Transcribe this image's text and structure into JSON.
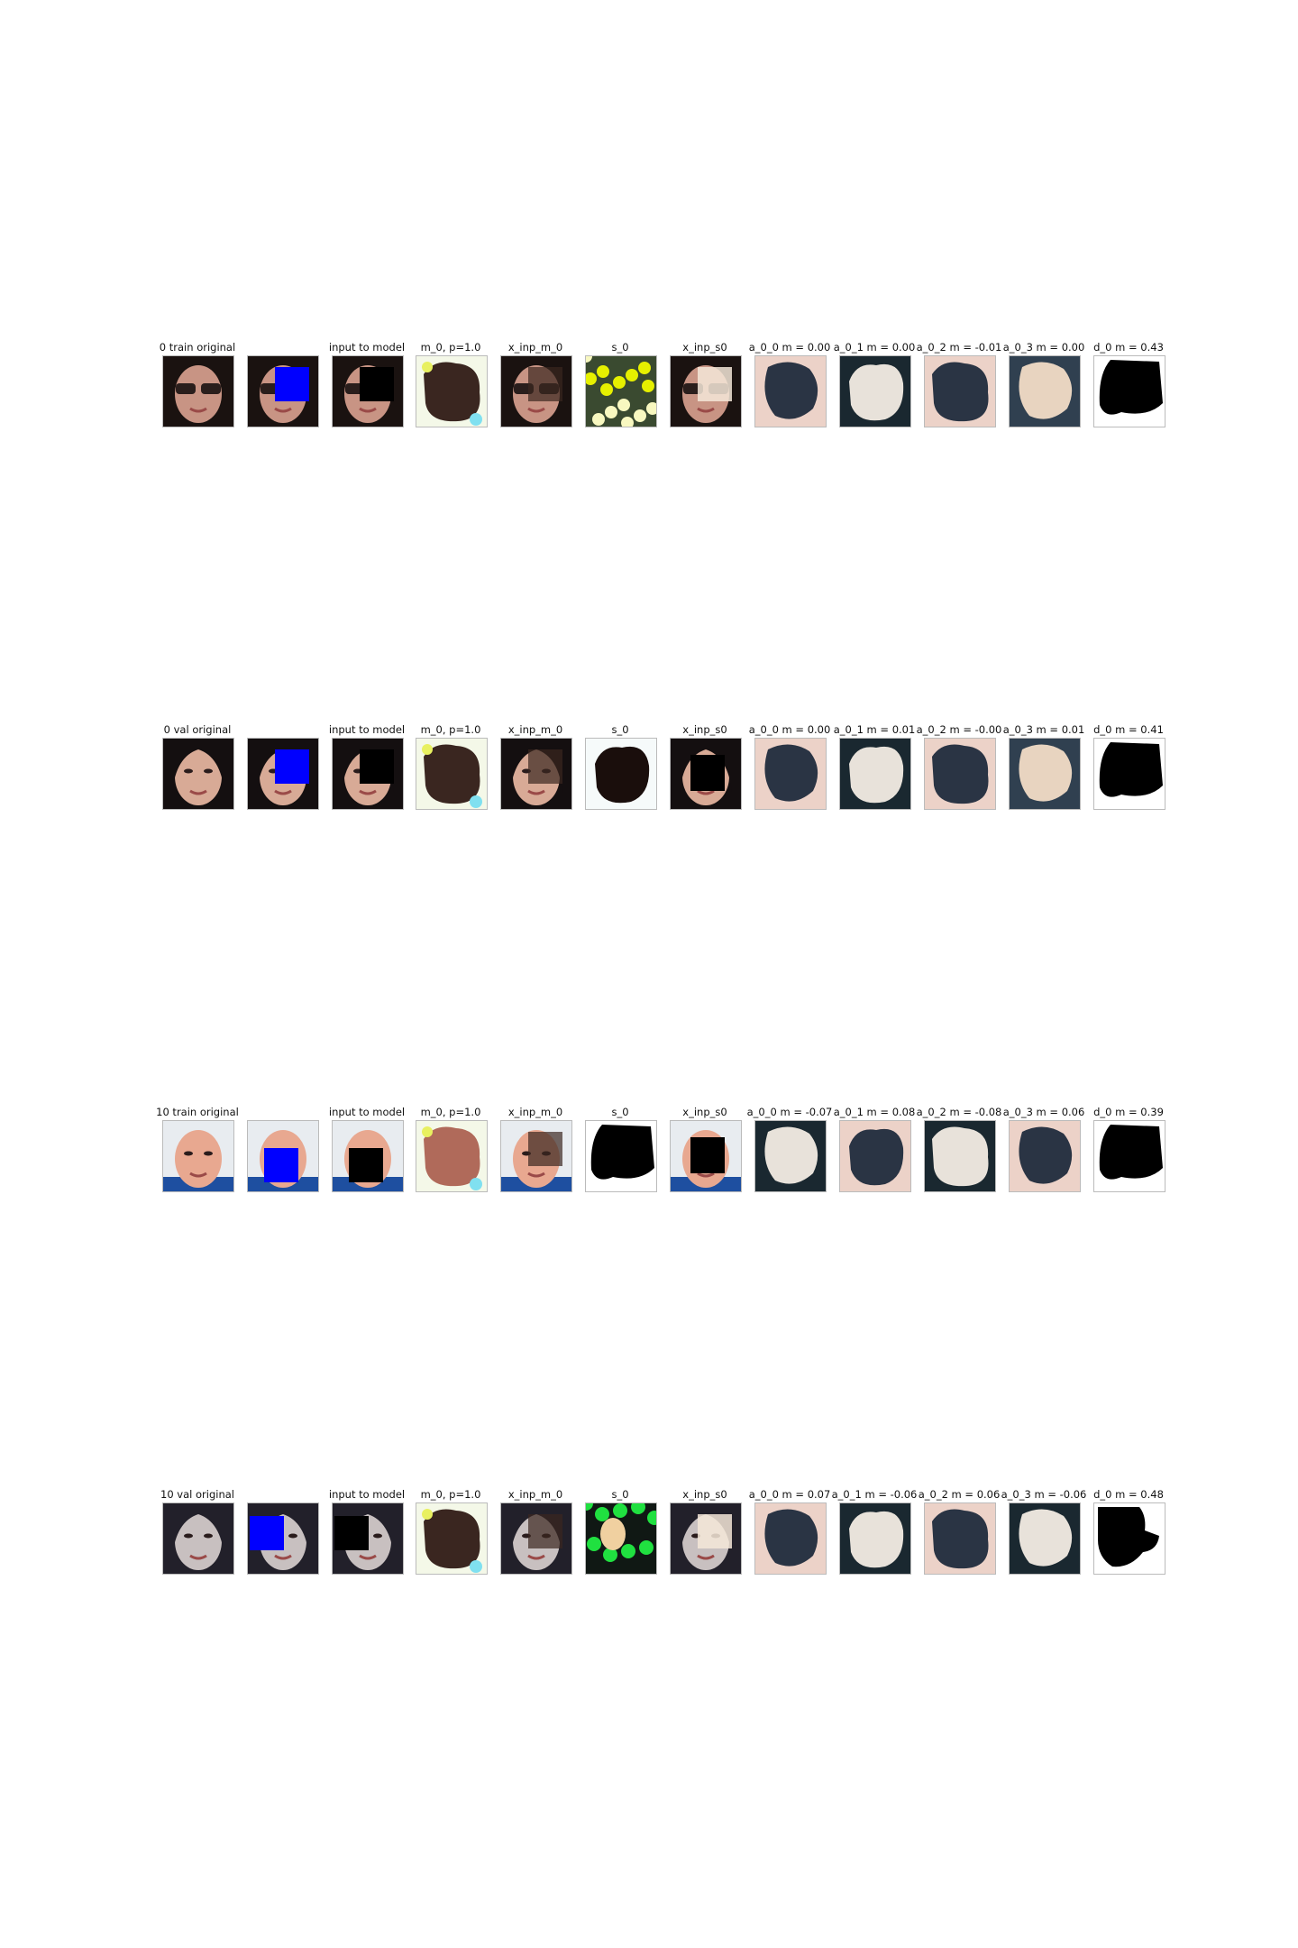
{
  "figure": {
    "rows": [
      {
        "panels": [
          {
            "title": "0 train  original",
            "kind": "original",
            "subject": "sunglasses-face"
          },
          {
            "title": "",
            "kind": "masked-blue",
            "subject": "sunglasses-face"
          },
          {
            "title": "input to model",
            "kind": "masked-black",
            "subject": "sunglasses-face"
          },
          {
            "title": "m_0, p=1.0",
            "kind": "noise-mask",
            "subject": "sunglasses-face"
          },
          {
            "title": "x_inp_m_0",
            "kind": "inpainted-dark",
            "subject": "sunglasses-face"
          },
          {
            "title": "s_0",
            "kind": "noise-color",
            "subject": "sunglasses-face"
          },
          {
            "title": "x_inp_s0",
            "kind": "inpainted-light",
            "subject": "sunglasses-face"
          },
          {
            "title": "a_0_0 m = 0.00",
            "kind": "blur-light",
            "subject": "sunglasses-face"
          },
          {
            "title": "a_0_1 m = 0.00",
            "kind": "blur-dark",
            "subject": "sunglasses-face"
          },
          {
            "title": "a_0_2 m = -0.01",
            "kind": "blur-light",
            "subject": "sunglasses-face"
          },
          {
            "title": "a_0_3 m = 0.00",
            "kind": "blur-mid",
            "subject": "sunglasses-face"
          },
          {
            "title": "d_0 m = 0.43",
            "kind": "binary",
            "subject": "sunglasses-face"
          }
        ]
      },
      {
        "panels": [
          {
            "title": "0 val  original",
            "kind": "original",
            "subject": "dark-hair-face"
          },
          {
            "title": "",
            "kind": "masked-blue",
            "subject": "dark-hair-face"
          },
          {
            "title": "input to model",
            "kind": "masked-black",
            "subject": "dark-hair-face"
          },
          {
            "title": "m_0, p=1.0",
            "kind": "noise-mask",
            "subject": "dark-hair-face"
          },
          {
            "title": "x_inp_m_0",
            "kind": "inpainted-dark",
            "subject": "dark-hair-face"
          },
          {
            "title": "s_0",
            "kind": "noise-dark",
            "subject": "dark-hair-face"
          },
          {
            "title": "x_inp_s0",
            "kind": "inpainted-black",
            "subject": "dark-hair-face"
          },
          {
            "title": "a_0_0 m = 0.00",
            "kind": "blur-light",
            "subject": "dark-hair-face"
          },
          {
            "title": "a_0_1 m = 0.01",
            "kind": "blur-dark",
            "subject": "dark-hair-face"
          },
          {
            "title": "a_0_2 m = -0.00",
            "kind": "blur-light",
            "subject": "dark-hair-face"
          },
          {
            "title": "a_0_3 m = 0.01",
            "kind": "blur-mid",
            "subject": "dark-hair-face"
          },
          {
            "title": "d_0 m = 0.41",
            "kind": "binary",
            "subject": "dark-hair-face"
          }
        ]
      },
      {
        "panels": [
          {
            "title": "10 train  original",
            "kind": "original",
            "subject": "smiling-man"
          },
          {
            "title": "",
            "kind": "masked-blue",
            "subject": "smiling-man"
          },
          {
            "title": "input to model",
            "kind": "masked-black",
            "subject": "smiling-man"
          },
          {
            "title": "m_0, p=1.0",
            "kind": "noise-mask",
            "subject": "smiling-man"
          },
          {
            "title": "x_inp_m_0",
            "kind": "inpainted-dark",
            "subject": "smiling-man"
          },
          {
            "title": "s_0",
            "kind": "binary",
            "subject": "smiling-man"
          },
          {
            "title": "x_inp_s0",
            "kind": "inpainted-black",
            "subject": "smiling-man"
          },
          {
            "title": "a_0_0 m = -0.07",
            "kind": "blur-dark",
            "subject": "smiling-man"
          },
          {
            "title": "a_0_1 m = 0.08",
            "kind": "blur-light",
            "subject": "smiling-man"
          },
          {
            "title": "a_0_2 m = -0.08",
            "kind": "blur-dark",
            "subject": "smiling-man"
          },
          {
            "title": "a_0_3 m = 0.06",
            "kind": "blur-light",
            "subject": "smiling-man"
          },
          {
            "title": "d_0 m = 0.39",
            "kind": "binary",
            "subject": "smiling-man"
          }
        ]
      },
      {
        "panels": [
          {
            "title": "10 val  original",
            "kind": "original",
            "subject": "pale-face"
          },
          {
            "title": "",
            "kind": "masked-blue",
            "subject": "pale-face"
          },
          {
            "title": "input to model",
            "kind": "masked-black",
            "subject": "pale-face"
          },
          {
            "title": "m_0, p=1.0",
            "kind": "noise-mask",
            "subject": "pale-face"
          },
          {
            "title": "x_inp_m_0",
            "kind": "inpainted-dark",
            "subject": "pale-face"
          },
          {
            "title": "s_0",
            "kind": "noise-green",
            "subject": "pale-face"
          },
          {
            "title": "x_inp_s0",
            "kind": "inpainted-light",
            "subject": "pale-face"
          },
          {
            "title": "a_0_0 m = 0.07",
            "kind": "blur-light",
            "subject": "pale-face"
          },
          {
            "title": "a_0_1 m = -0.06",
            "kind": "blur-dark",
            "subject": "pale-face"
          },
          {
            "title": "a_0_2 m = 0.06",
            "kind": "blur-light",
            "subject": "pale-face"
          },
          {
            "title": "a_0_3 m = -0.06",
            "kind": "blur-dark",
            "subject": "pale-face"
          },
          {
            "title": "d_0 m = 0.48",
            "kind": "binary-alt",
            "subject": "pale-face"
          }
        ]
      }
    ],
    "colors": {
      "mask_blue": "#0000ff",
      "mask_black": "#000000",
      "skin": "#d8a088",
      "background_dark": "#1a1210",
      "noise_yellow": "#e6f000",
      "noise_green": "#20e040"
    }
  }
}
